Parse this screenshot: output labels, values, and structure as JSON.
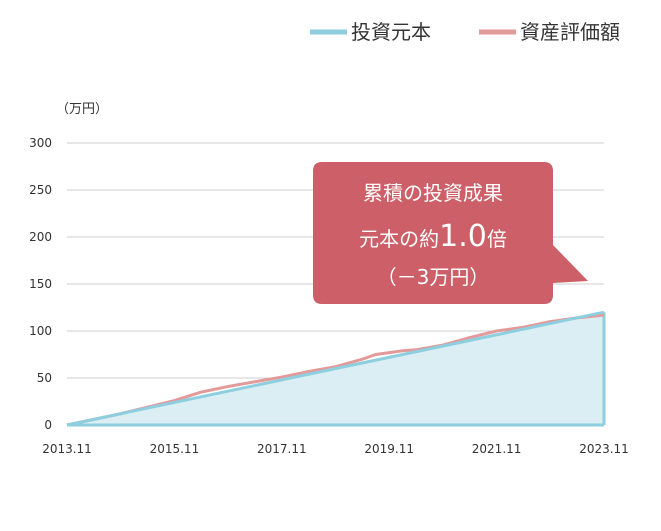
{
  "chart_data": {
    "type": "area",
    "unit": "（万円）",
    "x_ticks": [
      "2013.11",
      "2015.11",
      "2017.11",
      "2019.11",
      "2021.11",
      "2023.11"
    ],
    "y_ticks": [
      0,
      50,
      100,
      150,
      200,
      250,
      300
    ],
    "ylim": [
      0,
      300
    ],
    "xlim": [
      "2013.11",
      "2023.11"
    ],
    "grid": true,
    "legend_position": "top-right",
    "series": [
      {
        "name": "投資元本",
        "color": "#8ecfdf",
        "fill": "#daeef4",
        "points": [
          [
            "2013.11",
            0
          ],
          [
            "2023.11",
            120
          ]
        ]
      },
      {
        "name": "資産評価額",
        "color": "#e39a9a",
        "points": [
          [
            "2013.11",
            0
          ],
          [
            "2014.11",
            12
          ],
          [
            "2015.11",
            26
          ],
          [
            "2016.05",
            35
          ],
          [
            "2016.11",
            41
          ],
          [
            "2017.05",
            46
          ],
          [
            "2017.11",
            51
          ],
          [
            "2018.05",
            57
          ],
          [
            "2018.11",
            62
          ],
          [
            "2019.05",
            70
          ],
          [
            "2019.08",
            75
          ],
          [
            "2019.11",
            77
          ],
          [
            "2020.02",
            79
          ],
          [
            "2020.05",
            80
          ],
          [
            "2020.11",
            85
          ],
          [
            "2021.05",
            93
          ],
          [
            "2021.11",
            100
          ],
          [
            "2022.05",
            104
          ],
          [
            "2022.11",
            110
          ],
          [
            "2023.05",
            114
          ],
          [
            "2023.11",
            117
          ]
        ]
      }
    ],
    "annotation": {
      "line1": "累積の投資成果",
      "line2_prefix": "元本の約",
      "line2_value": "1.0",
      "line2_suffix": "倍",
      "line3": "（－3万円）",
      "color": "#cc5f67"
    }
  }
}
